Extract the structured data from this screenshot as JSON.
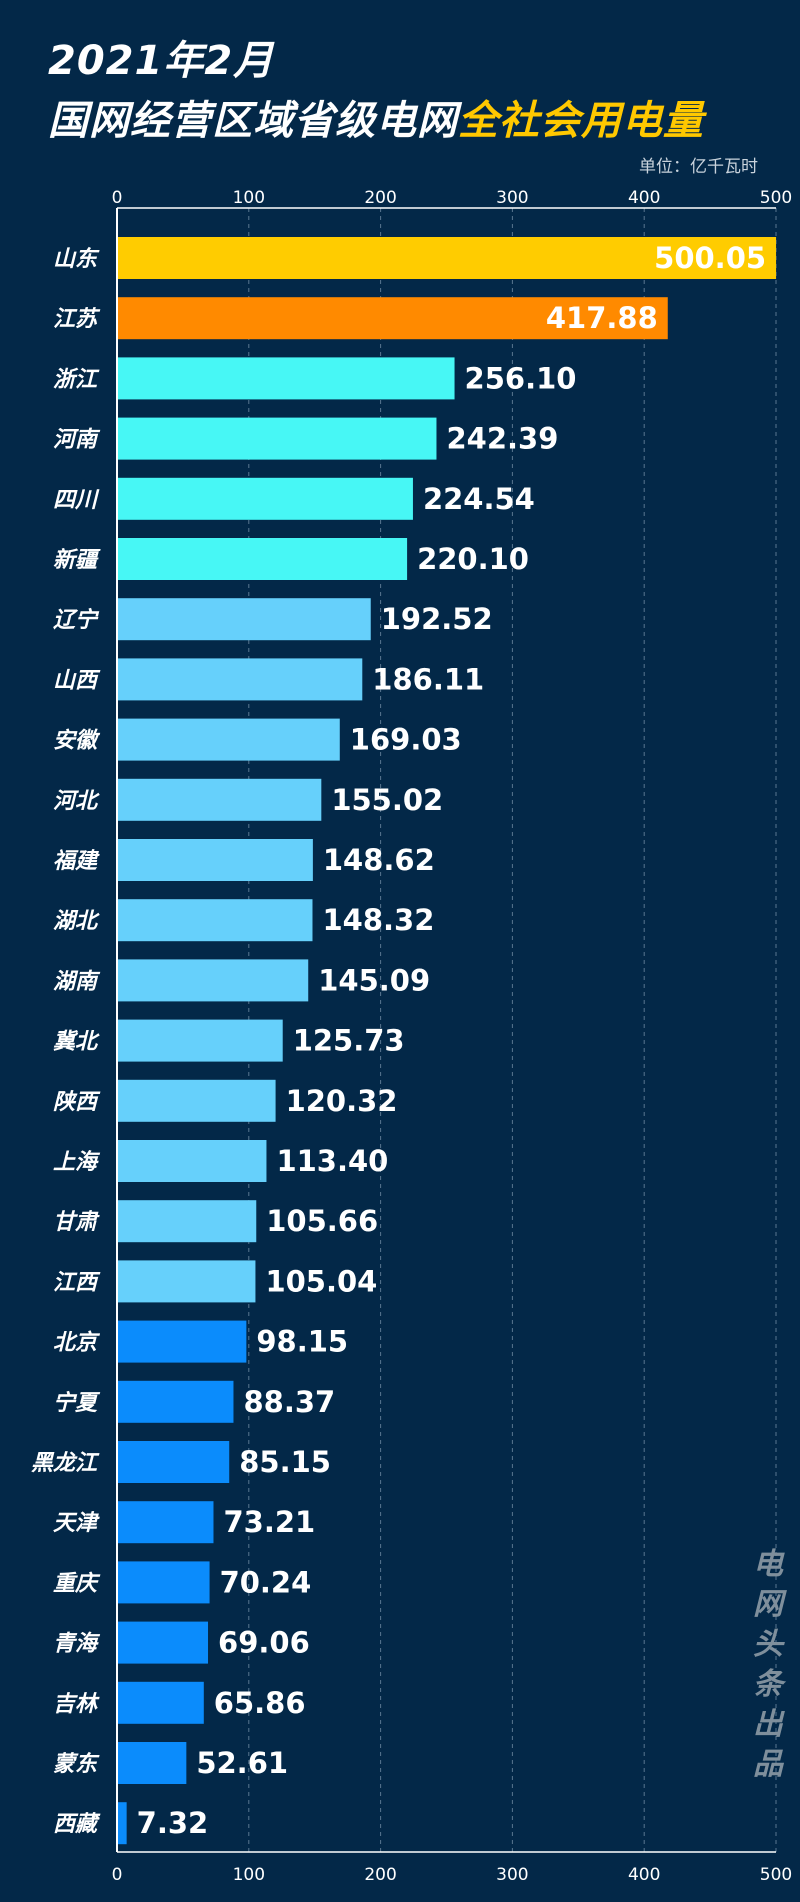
{
  "header": {
    "title_line1": "2021年2月",
    "title_line2_main": "国网经营区域省级电网",
    "title_line2_highlight": "全社会用电量",
    "unit": "单位：亿千瓦时"
  },
  "watermark": "电网头条出品",
  "colors": {
    "background": "#032848",
    "rank1": "#ffcc00",
    "rank2": "#ff8a00",
    "tier_cyan": "#47f7f5",
    "tier_light_blue": "#66d0fb",
    "tier_blue": "#0b8cfc",
    "highlight_text": "#ffc800"
  },
  "chart_data": {
    "type": "bar",
    "orientation": "horizontal",
    "xlim": [
      0,
      500
    ],
    "xticks": [
      0,
      100,
      200,
      300,
      400,
      500
    ],
    "grid": true,
    "categories": [
      "山东",
      "江苏",
      "浙江",
      "河南",
      "四川",
      "新疆",
      "辽宁",
      "山西",
      "安徽",
      "河北",
      "福建",
      "湖北",
      "湖南",
      "冀北",
      "陕西",
      "上海",
      "甘肃",
      "江西",
      "北京",
      "宁夏",
      "黑龙江",
      "天津",
      "重庆",
      "青海",
      "吉林",
      "蒙东",
      "西藏"
    ],
    "values": [
      500.05,
      417.88,
      256.1,
      242.39,
      224.54,
      220.1,
      192.52,
      186.11,
      169.03,
      155.02,
      148.62,
      148.32,
      145.09,
      125.73,
      120.32,
      113.4,
      105.66,
      105.04,
      98.15,
      88.37,
      85.15,
      73.21,
      70.24,
      69.06,
      65.86,
      52.61,
      7.32
    ],
    "value_labels": [
      "500.05",
      "417.88",
      "256.10",
      "242.39",
      "224.54",
      "220.10",
      "192.52",
      "186.11",
      "169.03",
      "155.02",
      "148.62",
      "148.32",
      "145.09",
      "125.73",
      "120.32",
      "113.40",
      "105.66",
      "105.04",
      "98.15",
      "88.37",
      "85.15",
      "73.21",
      "70.24",
      "69.06",
      "65.86",
      "52.61",
      "7.32"
    ]
  }
}
